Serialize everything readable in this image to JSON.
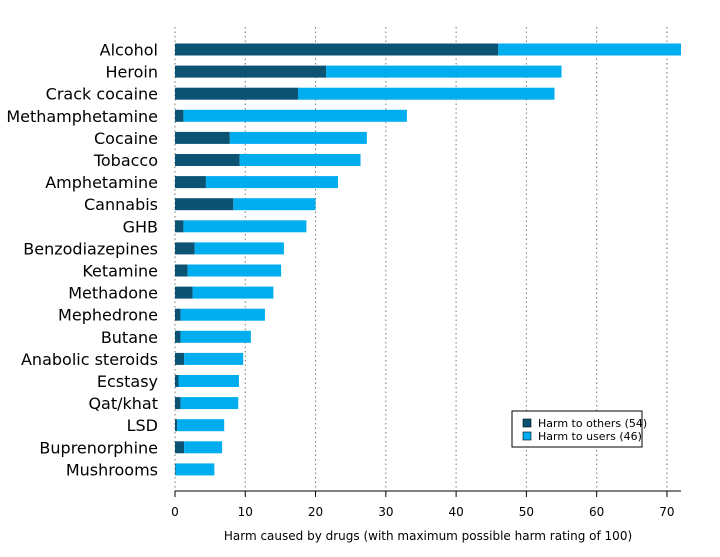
{
  "chart_data": {
    "type": "bar",
    "orientation": "horizontal",
    "stacked": true,
    "categories": [
      "Alcohol",
      "Heroin",
      "Crack cocaine",
      "Methamphetamine",
      "Cocaine",
      "Tobacco",
      "Amphetamine",
      "Cannabis",
      "GHB",
      "Benzodiazepines",
      "Ketamine",
      "Methadone",
      "Mephedrone",
      "Butane",
      "Anabolic steroids",
      "Ecstasy",
      "Qat/khat",
      "LSD",
      "Buprenorphine",
      "Mushrooms"
    ],
    "series": [
      {
        "name": "Harm to others (54)",
        "color": "#0b5273",
        "values": [
          46,
          21.5,
          17.5,
          1.2,
          7.8,
          9.2,
          4.4,
          8.3,
          1.2,
          2.8,
          1.8,
          2.5,
          0.8,
          0.8,
          1.3,
          0.5,
          0.8,
          0.3,
          1.3,
          0.1
        ]
      },
      {
        "name": "Harm to users (46)",
        "color": "#00aef0",
        "values": [
          26,
          33.5,
          36.5,
          31.8,
          19.5,
          17.2,
          18.8,
          11.7,
          17.5,
          12.7,
          13.3,
          11.5,
          12.0,
          10.0,
          8.4,
          8.6,
          8.2,
          6.7,
          5.4,
          5.5
        ]
      }
    ],
    "xlabel": "Harm caused by drugs (with maximum possible harm rating of 100)",
    "xlim": [
      0,
      72
    ],
    "xticks": [
      0,
      10,
      20,
      30,
      40,
      50,
      60,
      70
    ],
    "grid": "vertical dotted",
    "legend_position": "bottom-right"
  }
}
